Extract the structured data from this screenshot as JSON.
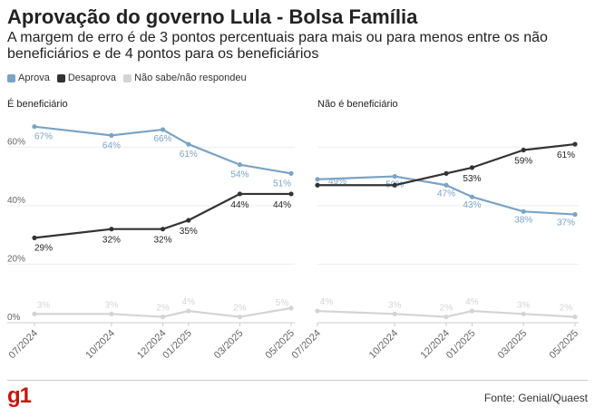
{
  "header": {
    "title": "Aprovação do governo Lula - Bolsa Família",
    "subtitle": "A margem de erro é de 3 pontos percentuais para mais ou para menos entre os não beneficiários e de 4 pontos para os beneficiários"
  },
  "legend": [
    {
      "label": "Aprova",
      "color": "#7ba3c4"
    },
    {
      "label": "Desaprova",
      "color": "#333333"
    },
    {
      "label": "Não sabe/não respondeu",
      "color": "#d4d4d4"
    }
  ],
  "footer": {
    "logo": "g1",
    "source": "Fonte: Genial/Quaest"
  },
  "chart_data": [
    {
      "type": "line",
      "title": "É beneficiário",
      "x": [
        "07/2024",
        "10/2024",
        "12/2024",
        "01/2025",
        "03/2025",
        "05/2025"
      ],
      "ylim": [
        0,
        70
      ],
      "yticks": [
        "0%",
        "20%",
        "40%",
        "60%"
      ],
      "grid": true,
      "series": [
        {
          "name": "Aprova",
          "color": "#7ba3c4",
          "values": [
            67,
            64,
            66,
            61,
            54,
            51
          ],
          "labels": [
            "67%",
            "64%",
            "66%",
            "61%",
            "54%",
            "51%"
          ]
        },
        {
          "name": "Desaprova",
          "color": "#333333",
          "values": [
            29,
            32,
            32,
            35,
            44,
            44
          ],
          "labels": [
            "29%",
            "32%",
            "32%",
            "35%",
            "44%",
            "44%"
          ]
        },
        {
          "name": "Não sabe/não respondeu",
          "color": "#d4d4d4",
          "values": [
            3,
            3,
            2,
            4,
            2,
            5
          ],
          "labels": [
            "3%",
            "3%",
            "2%",
            "4%",
            "2%",
            "5%"
          ]
        }
      ]
    },
    {
      "type": "line",
      "title": "Não é beneficiário",
      "x": [
        "07/2024",
        "10/2024",
        "12/2024",
        "01/2025",
        "03/2025",
        "05/2025"
      ],
      "ylim": [
        0,
        70
      ],
      "grid": true,
      "series": [
        {
          "name": "Aprova",
          "color": "#7ba3c4",
          "values": [
            49,
            50,
            47,
            43,
            38,
            37
          ],
          "labels": [
            "49%",
            "50%",
            "47%",
            "43%",
            "38%",
            "37%"
          ]
        },
        {
          "name": "Desaprova",
          "color": "#333333",
          "values": [
            47,
            47,
            51,
            53,
            59,
            61
          ],
          "labels": [
            "",
            "",
            "",
            "53%",
            "59%",
            "61%"
          ]
        },
        {
          "name": "Não sabe/não respondeu",
          "color": "#d4d4d4",
          "values": [
            4,
            3,
            2,
            4,
            3,
            2
          ],
          "labels": [
            "4%",
            "3%",
            "2%",
            "4%",
            "3%",
            "2%"
          ]
        }
      ]
    }
  ]
}
